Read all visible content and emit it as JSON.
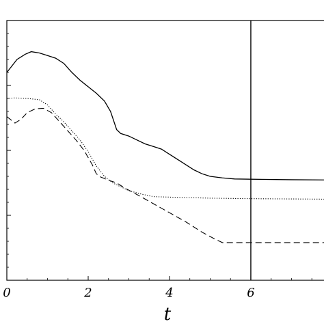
{
  "chart_data": {
    "type": "line",
    "xlabel": "t",
    "ylabel": "",
    "xlim": [
      0,
      7.9
    ],
    "ylim": [
      0,
      1
    ],
    "x_ticks": [
      0,
      2,
      4,
      6
    ],
    "x_tick_labels": [
      "0",
      "2",
      "4",
      "6"
    ],
    "vline_x": 6,
    "grid": false,
    "series": [
      {
        "style": "solid",
        "points": [
          [
            0.0,
            0.8
          ],
          [
            0.1,
            0.82
          ],
          [
            0.25,
            0.85
          ],
          [
            0.45,
            0.87
          ],
          [
            0.6,
            0.88
          ],
          [
            0.8,
            0.875
          ],
          [
            1.0,
            0.865
          ],
          [
            1.2,
            0.855
          ],
          [
            1.4,
            0.835
          ],
          [
            1.6,
            0.8
          ],
          [
            1.8,
            0.77
          ],
          [
            2.0,
            0.745
          ],
          [
            2.2,
            0.72
          ],
          [
            2.4,
            0.69
          ],
          [
            2.55,
            0.65
          ],
          [
            2.7,
            0.58
          ],
          [
            2.8,
            0.565
          ],
          [
            3.0,
            0.555
          ],
          [
            3.2,
            0.54
          ],
          [
            3.4,
            0.525
          ],
          [
            3.6,
            0.515
          ],
          [
            3.8,
            0.505
          ],
          [
            4.0,
            0.485
          ],
          [
            4.3,
            0.455
          ],
          [
            4.6,
            0.425
          ],
          [
            4.8,
            0.41
          ],
          [
            5.0,
            0.4
          ],
          [
            5.3,
            0.394
          ],
          [
            5.6,
            0.39
          ],
          [
            6.0,
            0.389
          ],
          [
            7.0,
            0.387
          ],
          [
            7.9,
            0.386
          ]
        ]
      },
      {
        "style": "dotted",
        "points": [
          [
            0.0,
            0.7
          ],
          [
            0.2,
            0.702
          ],
          [
            0.5,
            0.7
          ],
          [
            0.8,
            0.695
          ],
          [
            1.0,
            0.675
          ],
          [
            1.2,
            0.64
          ],
          [
            1.4,
            0.61
          ],
          [
            1.6,
            0.575
          ],
          [
            1.8,
            0.54
          ],
          [
            2.0,
            0.495
          ],
          [
            2.2,
            0.44
          ],
          [
            2.4,
            0.4
          ],
          [
            2.6,
            0.375
          ],
          [
            2.8,
            0.36
          ],
          [
            3.0,
            0.345
          ],
          [
            3.3,
            0.332
          ],
          [
            3.6,
            0.322
          ],
          [
            4.0,
            0.32
          ],
          [
            5.0,
            0.316
          ],
          [
            6.0,
            0.314
          ],
          [
            7.0,
            0.313
          ],
          [
            7.9,
            0.312
          ]
        ]
      },
      {
        "style": "dashed",
        "points": [
          [
            0.0,
            0.63
          ],
          [
            0.2,
            0.605
          ],
          [
            0.35,
            0.62
          ],
          [
            0.5,
            0.645
          ],
          [
            0.7,
            0.66
          ],
          [
            0.9,
            0.662
          ],
          [
            1.1,
            0.645
          ],
          [
            1.3,
            0.61
          ],
          [
            1.5,
            0.575
          ],
          [
            1.7,
            0.54
          ],
          [
            1.9,
            0.5
          ],
          [
            2.1,
            0.445
          ],
          [
            2.2,
            0.41
          ],
          [
            2.3,
            0.398
          ],
          [
            2.5,
            0.385
          ],
          [
            2.7,
            0.375
          ],
          [
            2.9,
            0.355
          ],
          [
            3.2,
            0.33
          ],
          [
            3.6,
            0.295
          ],
          [
            4.0,
            0.26
          ],
          [
            4.4,
            0.225
          ],
          [
            4.8,
            0.185
          ],
          [
            5.1,
            0.16
          ],
          [
            5.3,
            0.145
          ],
          [
            6.0,
            0.145
          ],
          [
            7.0,
            0.145
          ],
          [
            7.9,
            0.145
          ]
        ]
      }
    ]
  }
}
